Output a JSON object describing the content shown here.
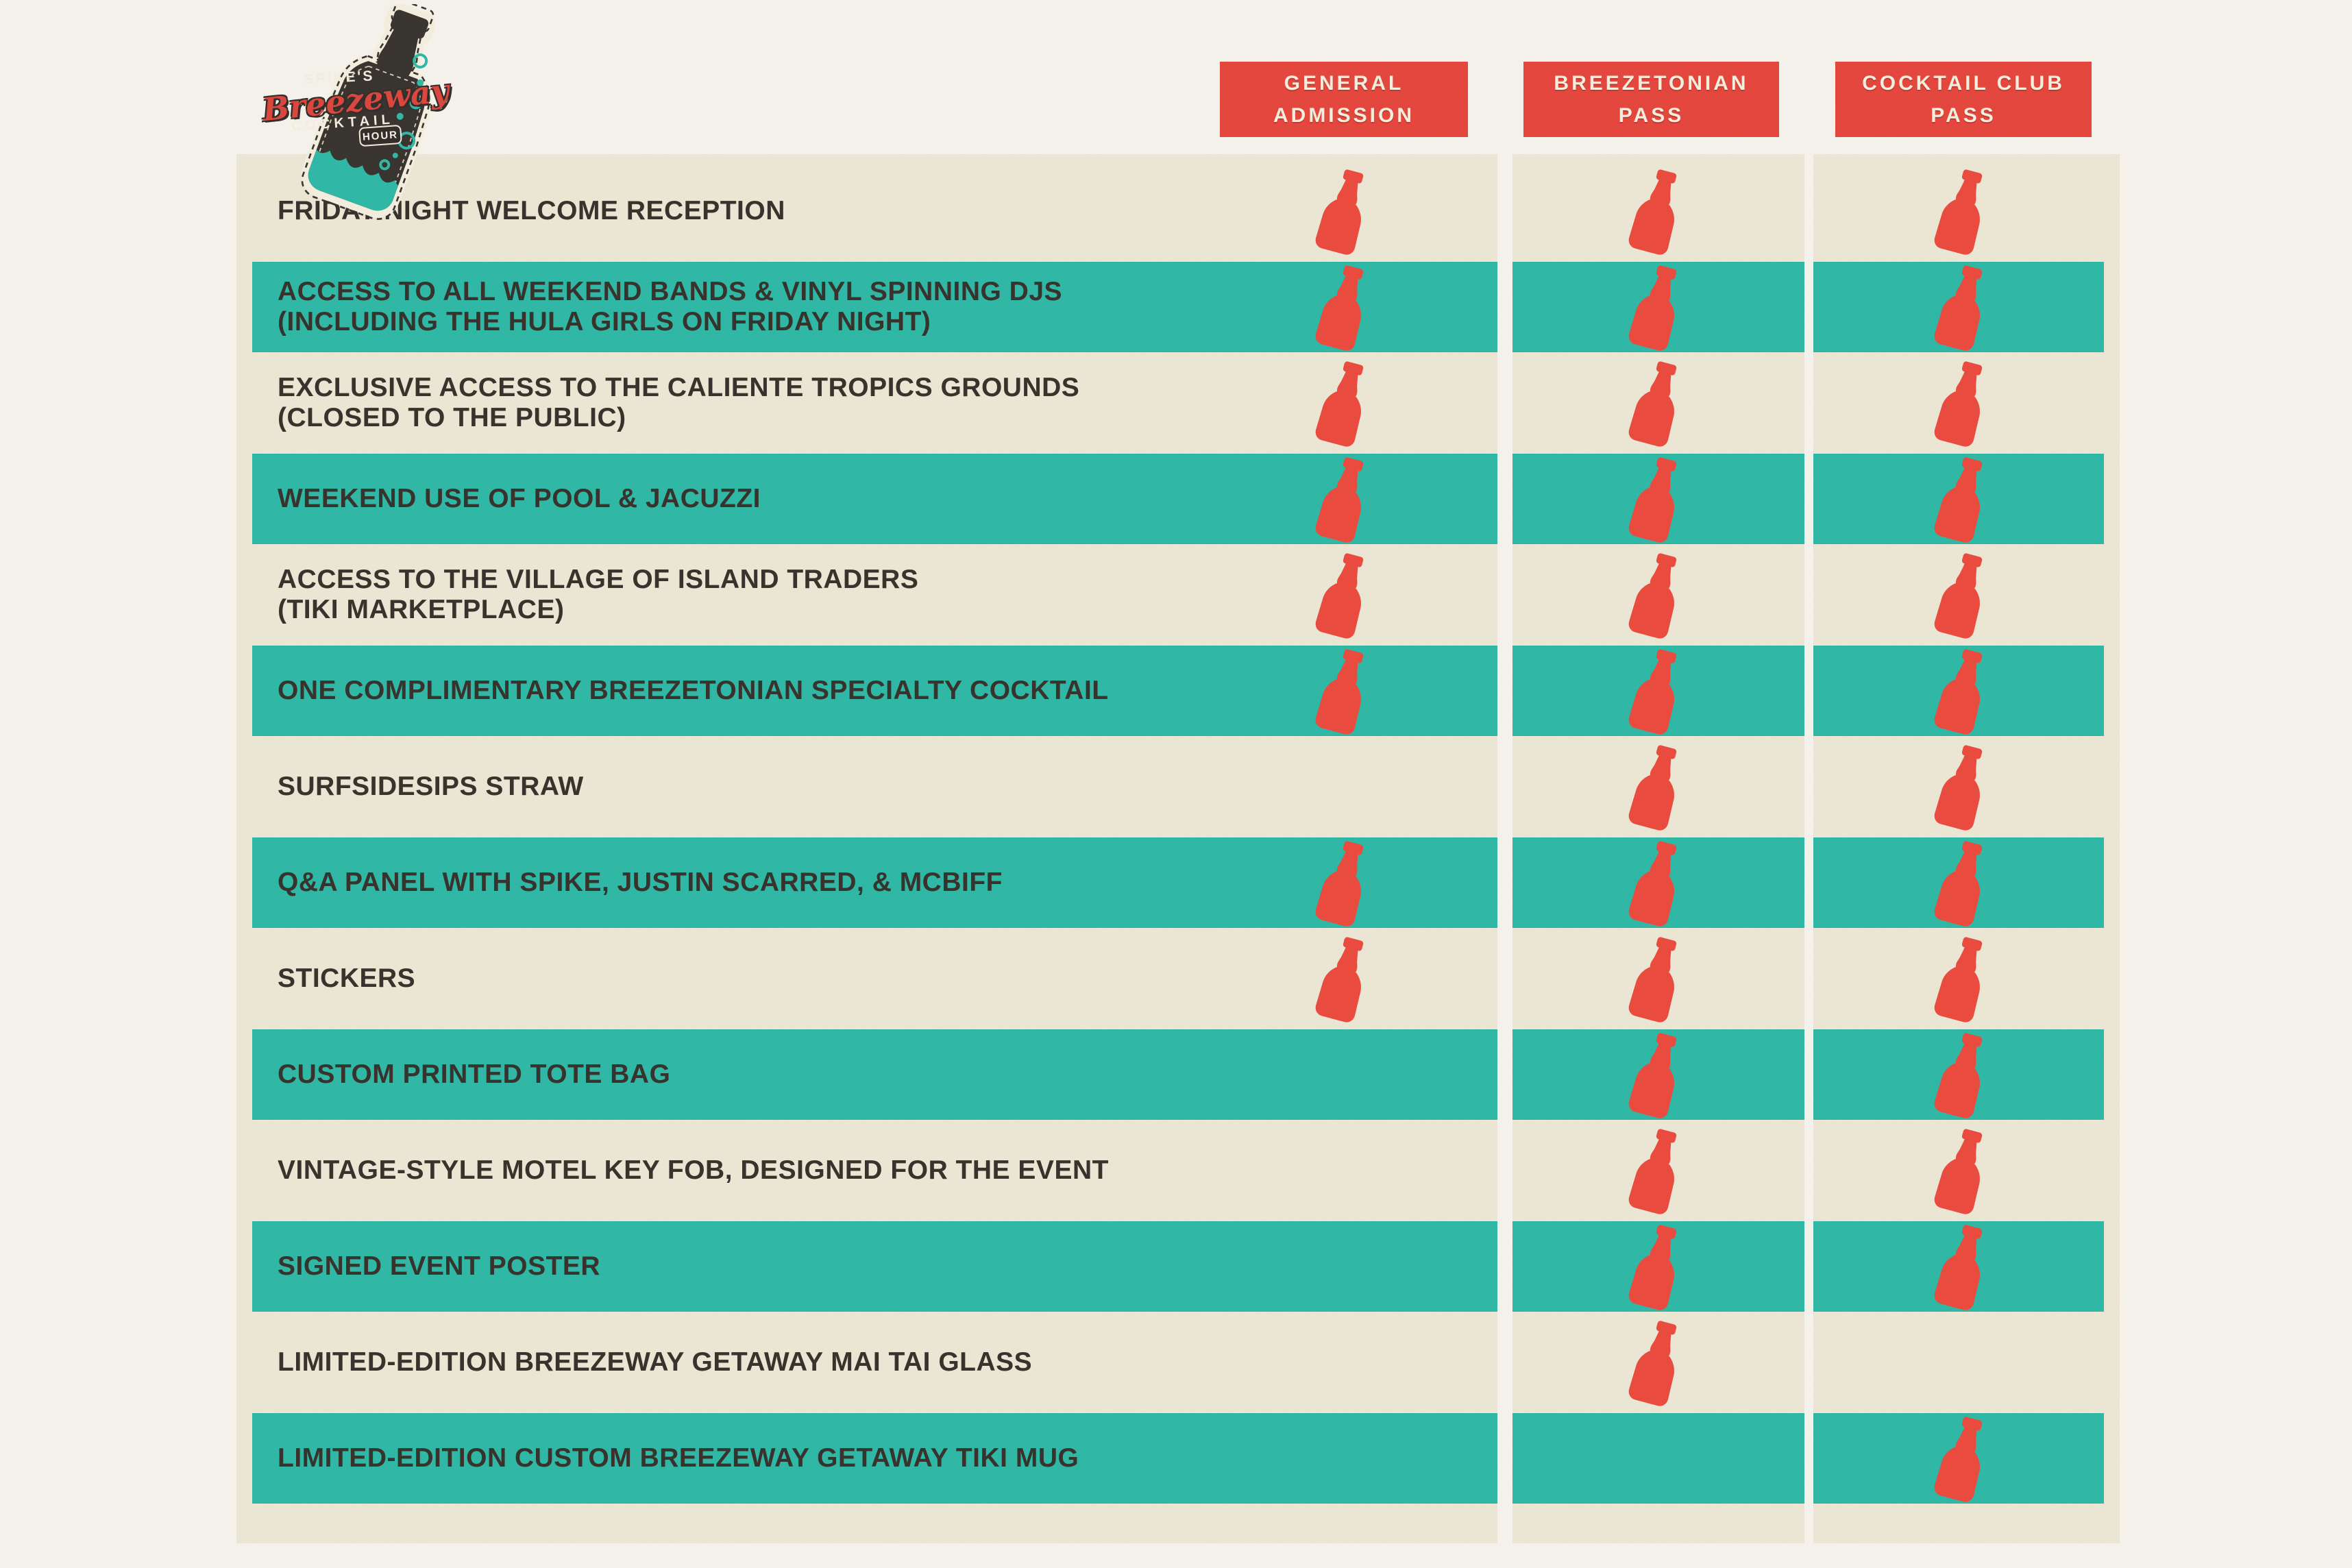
{
  "logo": {
    "spikes": "SPIKE'S",
    "script": "Breezeway",
    "cocktail": "COCKTAIL",
    "hour": "HOUR"
  },
  "colors": {
    "page": "#f3f1e9",
    "cream": "#eae4d2",
    "teal": "#2cb5a3",
    "red": "#e8483c",
    "header_red": "#e2433b",
    "ink": "#332f2a"
  },
  "columns": [
    {
      "id": "general-admission",
      "label": "GENERAL ADMISSION"
    },
    {
      "id": "breezetonian-pass",
      "label": "BREEZETONIAN PASS"
    },
    {
      "id": "cocktail-club-pass",
      "label": "COCKTAIL CLUB PASS"
    }
  ],
  "icon": {
    "name": "bottle-icon",
    "meaning": "benefit included"
  },
  "rows": [
    {
      "label_lines": [
        "FRIDAY NIGHT WELCOME RECEPTION"
      ],
      "included": [
        true,
        true,
        true
      ]
    },
    {
      "label_lines": [
        "ACCESS TO ALL WEEKEND BANDS & VINYL SPINNING DJS",
        "(INCLUDING THE HULA GIRLS ON FRIDAY NIGHT)"
      ],
      "included": [
        true,
        true,
        true
      ]
    },
    {
      "label_lines": [
        "EXCLUSIVE ACCESS TO THE CALIENTE TROPICS GROUNDS",
        "(CLOSED TO THE PUBLIC)"
      ],
      "included": [
        true,
        true,
        true
      ]
    },
    {
      "label_lines": [
        "WEEKEND USE OF POOL & JACUZZI"
      ],
      "included": [
        true,
        true,
        true
      ]
    },
    {
      "label_lines": [
        "ACCESS TO THE VILLAGE OF ISLAND TRADERS",
        "(TIKI MARKETPLACE)"
      ],
      "included": [
        true,
        true,
        true
      ]
    },
    {
      "label_lines": [
        "ONE COMPLIMENTARY BREEZETONIAN SPECIALTY COCKTAIL"
      ],
      "included": [
        true,
        true,
        true
      ]
    },
    {
      "label_lines": [
        "SURFSIDESIPS STRAW"
      ],
      "included": [
        false,
        true,
        true
      ]
    },
    {
      "label_lines": [
        "Q&A PANEL WITH SPIKE, JUSTIN SCARRED, & MCBIFF"
      ],
      "included": [
        true,
        true,
        true
      ]
    },
    {
      "label_lines": [
        "STICKERS"
      ],
      "included": [
        true,
        true,
        true
      ]
    },
    {
      "label_lines": [
        "CUSTOM PRINTED TOTE BAG"
      ],
      "included": [
        false,
        true,
        true
      ]
    },
    {
      "label_lines": [
        "VINTAGE-STYLE MOTEL KEY FOB, DESIGNED FOR THE EVENT"
      ],
      "included": [
        false,
        true,
        true
      ]
    },
    {
      "label_lines": [
        "SIGNED EVENT POSTER"
      ],
      "included": [
        false,
        true,
        true
      ]
    },
    {
      "label_lines": [
        "LIMITED-EDITION BREEZEWAY GETAWAY MAI TAI GLASS"
      ],
      "included": [
        false,
        true,
        false
      ]
    },
    {
      "label_lines": [
        "LIMITED-EDITION CUSTOM BREEZEWAY GETAWAY TIKI MUG"
      ],
      "included": [
        false,
        false,
        true
      ]
    }
  ]
}
